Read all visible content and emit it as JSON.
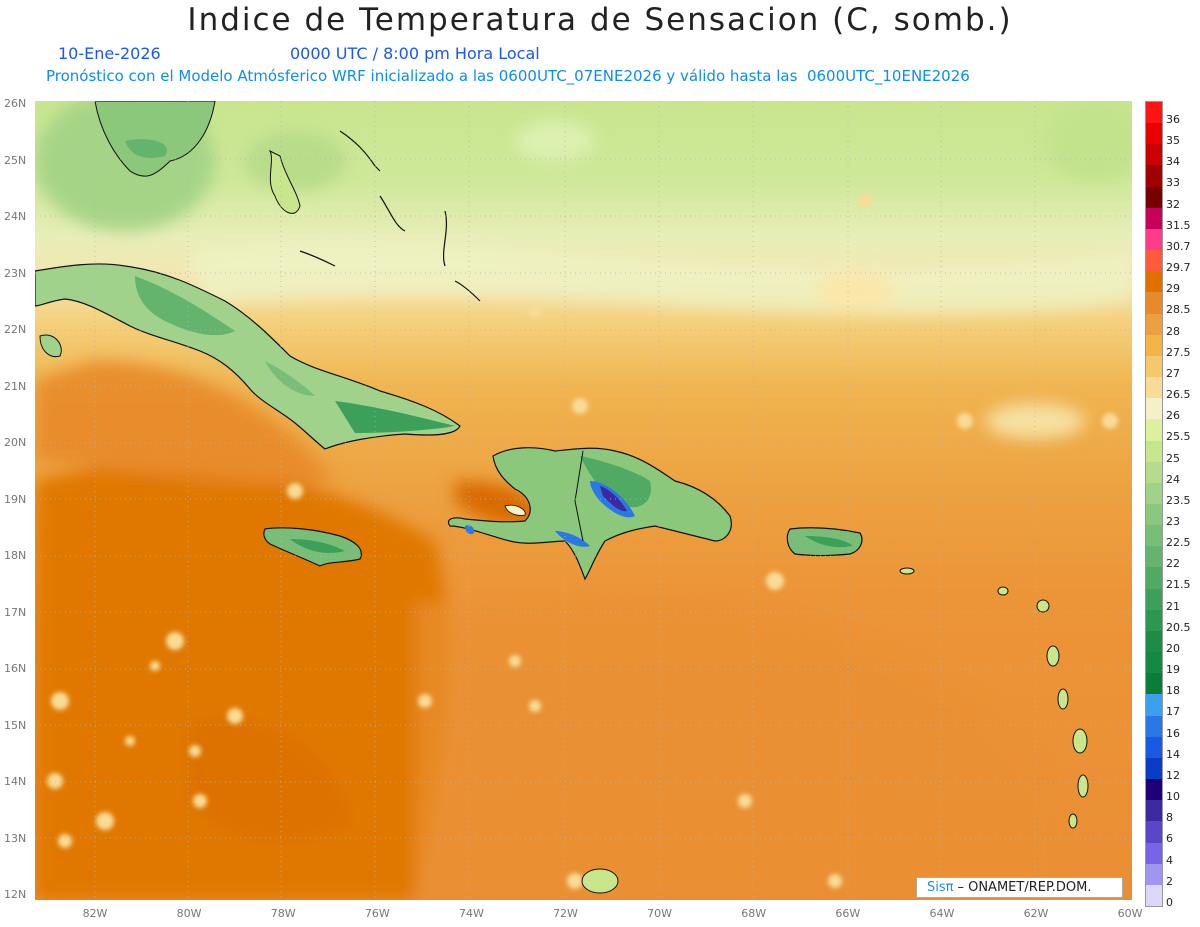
{
  "title": "Indice de Temperatura de Sensacion (C, somb.)",
  "date": "10-Ene-2026",
  "time": "0000 UTC / 8:00 pm Hora Local",
  "forecast_info": "Pronóstico con el Modelo Atmósferico WRF inicializado a las 0600UTC_07ENE2026 y válido hasta las  0600UTC_10ENE2026",
  "lat_labels": [
    "26N",
    "25N",
    "24N",
    "23N",
    "22N",
    "21N",
    "20N",
    "19N",
    "18N",
    "17N",
    "16N",
    "15N",
    "14N",
    "13N",
    "12N"
  ],
  "lon_labels": [
    "82W",
    "80W",
    "78W",
    "76W",
    "74W",
    "72W",
    "70W",
    "68W",
    "66W",
    "64W",
    "62W",
    "60W"
  ],
  "colorbar": {
    "labels": [
      "36",
      "35",
      "34",
      "33",
      "32",
      "31.5",
      "30.7",
      "29.7",
      "29",
      "28.5",
      "28",
      "27.5",
      "27",
      "26.5",
      "26",
      "25.5",
      "25",
      "24",
      "23.5",
      "23",
      "22.5",
      "22",
      "21.5",
      "21",
      "20.5",
      "20",
      "19",
      "18",
      "17",
      "16",
      "14",
      "12",
      "10",
      "8",
      "6",
      "4",
      "2",
      "0"
    ],
    "colors": [
      "#ff1414",
      "#e60000",
      "#c80000",
      "#a00000",
      "#780000",
      "#c8005a",
      "#ff3c8c",
      "#ff5a3c",
      "#e07000",
      "#e88a2a",
      "#eda040",
      "#f2b446",
      "#f6c86e",
      "#f8dc96",
      "#f5f0c8",
      "#dcf0a0",
      "#c8e68c",
      "#b4dc8c",
      "#a0d28c",
      "#8cc87c",
      "#78be78",
      "#64b46e",
      "#50aa64",
      "#3ca05a",
      "#2d9650",
      "#1e8c46",
      "#138a42",
      "#0a7d3a",
      "#3ca0f0",
      "#2878e6",
      "#1a5ae0",
      "#0a3cc8",
      "#1e0078",
      "#3c28a0",
      "#5a46c8",
      "#7864e6",
      "#a096f0",
      "#dcd8f8"
    ]
  },
  "credit": {
    "brand": "Sisπ",
    "org": "– ONAMET/REP.DOM."
  }
}
